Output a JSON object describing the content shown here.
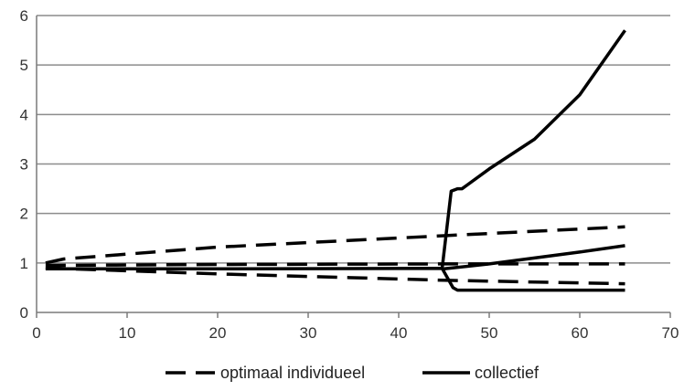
{
  "chart_data": {
    "type": "line",
    "title": "",
    "xlabel": "",
    "ylabel": "",
    "xlim": [
      0,
      70
    ],
    "ylim": [
      0,
      6
    ],
    "xticks": [
      "0",
      "10",
      "20",
      "30",
      "40",
      "50",
      "60",
      "70"
    ],
    "yticks": [
      "0",
      "1",
      "2",
      "3",
      "4",
      "5",
      "6"
    ],
    "grid": "horizontal",
    "legend_position": "bottom",
    "series": [
      {
        "name": "optimaal individueel",
        "style": "dashed",
        "color": "#000000",
        "lines": [
          [
            [
              1,
              1.0
            ],
            [
              3,
              1.08
            ],
            [
              20,
              1.32
            ],
            [
              45,
              1.55
            ],
            [
              65,
              1.73
            ]
          ],
          [
            [
              1,
              0.95
            ],
            [
              20,
              0.97
            ],
            [
              45,
              0.98
            ],
            [
              65,
              0.98
            ]
          ],
          [
            [
              1,
              0.9
            ],
            [
              20,
              0.78
            ],
            [
              45,
              0.65
            ],
            [
              65,
              0.58
            ]
          ]
        ]
      },
      {
        "name": "collectief",
        "style": "solid",
        "color": "#000000",
        "lines": [
          [
            [
              1,
              0.88
            ],
            [
              20,
              0.88
            ],
            [
              44.8,
              0.89
            ],
            [
              46,
              0.5
            ],
            [
              46.5,
              0.45
            ],
            [
              47,
              0.45
            ],
            [
              65,
              0.45
            ]
          ],
          [
            [
              44.8,
              0.89
            ],
            [
              45.8,
              2.45
            ],
            [
              46.5,
              2.5
            ],
            [
              47,
              2.5
            ],
            [
              50,
              2.9
            ],
            [
              55,
              3.5
            ],
            [
              60,
              4.4
            ],
            [
              65,
              5.7
            ]
          ],
          [
            [
              45,
              0.88
            ],
            [
              50,
              0.98
            ],
            [
              55,
              1.1
            ],
            [
              60,
              1.22
            ],
            [
              65,
              1.35
            ]
          ]
        ]
      }
    ]
  }
}
